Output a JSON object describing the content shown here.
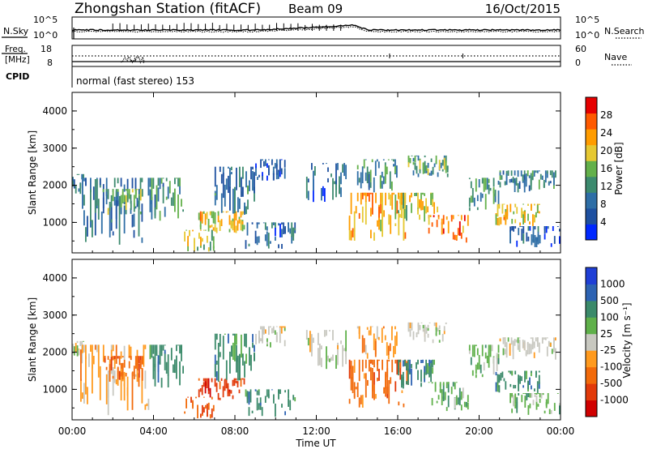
{
  "header": {
    "station": "Zhongshan Station (fitACF)",
    "beam": "Beam 09",
    "date": "16/Oct/2015"
  },
  "noise_panel": {
    "left_label": "N.Sky",
    "right_label": "N.Search",
    "left_ticks": [
      "10^5",
      "10^0"
    ],
    "right_ticks": [
      "10^5",
      "10^0"
    ]
  },
  "freq_panel": {
    "label_line1": "Freq.",
    "label_line2": "[MHz]",
    "left_ticks": [
      "18",
      "8"
    ],
    "right_ticks": [
      "60",
      "0"
    ],
    "right_label": "Nave"
  },
  "cpid_panel": {
    "label": "CPID",
    "text": "normal (fast stereo) 153"
  },
  "x_axis": {
    "label": "Time UT",
    "ticks": [
      "00:00",
      "04:00",
      "08:00",
      "12:00",
      "16:00",
      "20:00",
      "00:00"
    ]
  },
  "colors": {
    "power": [
      "#0028ff",
      "#1e50a0",
      "#2e6ea6",
      "#3c8a6e",
      "#63b04a",
      "#e6c832",
      "#ff9c00",
      "#ff5a00",
      "#e60000"
    ],
    "velocity": [
      "#1f3fd6",
      "#2d63b3",
      "#3b8a6a",
      "#5fb04a",
      "#c8c8c0",
      "#ff9a1e",
      "#f26a0a",
      "#e23a0a",
      "#d00000"
    ]
  },
  "chart_data": [
    {
      "type": "heatmap",
      "title": "",
      "ylabel": "Slant Range [km]",
      "xlabel": "",
      "x_range_hours": [
        0,
        24
      ],
      "ylim": [
        180,
        4500
      ],
      "y_ticks": [
        "4000",
        "3000",
        "2000",
        "1000"
      ],
      "colorbar": {
        "label": "Power [dB]",
        "ticks": [
          "28",
          "24",
          "20",
          "16",
          "12",
          "8",
          "4"
        ],
        "range": [
          0,
          32
        ]
      },
      "blobs": [
        {
          "t0": 0.0,
          "t1": 0.6,
          "r0": 1700,
          "r1": 2300,
          "value": 10
        },
        {
          "t0": 0.4,
          "t1": 3.8,
          "r0": 250,
          "r1": 2200,
          "value": 9
        },
        {
          "t0": 1.5,
          "t1": 3.5,
          "r0": 1200,
          "r1": 1900,
          "value": 14
        },
        {
          "t0": 3.8,
          "t1": 5.5,
          "r0": 1000,
          "r1": 2200,
          "value": 11
        },
        {
          "t0": 5.5,
          "t1": 7.0,
          "r0": 200,
          "r1": 800,
          "value": 18
        },
        {
          "t0": 6.2,
          "t1": 8.5,
          "r0": 700,
          "r1": 1300,
          "value": 20
        },
        {
          "t0": 7.0,
          "t1": 9.0,
          "r0": 1200,
          "r1": 2500,
          "value": 10
        },
        {
          "t0": 8.5,
          "t1": 11.0,
          "r0": 250,
          "r1": 1000,
          "value": 8
        },
        {
          "t0": 9.0,
          "t1": 10.5,
          "r0": 2100,
          "r1": 2700,
          "value": 6
        },
        {
          "t0": 11.5,
          "t1": 13.5,
          "r0": 1500,
          "r1": 2600,
          "value": 8
        },
        {
          "t0": 13.6,
          "t1": 16.5,
          "r0": 500,
          "r1": 1800,
          "value": 22
        },
        {
          "t0": 14.0,
          "t1": 16.0,
          "r0": 1800,
          "r1": 2700,
          "value": 12
        },
        {
          "t0": 16.0,
          "t1": 18.0,
          "r0": 1000,
          "r1": 1800,
          "value": 18
        },
        {
          "t0": 16.5,
          "t1": 18.5,
          "r0": 2200,
          "r1": 2800,
          "value": 14
        },
        {
          "t0": 17.5,
          "t1": 19.5,
          "r0": 400,
          "r1": 1200,
          "value": 26
        },
        {
          "t0": 19.5,
          "t1": 21.0,
          "r0": 1300,
          "r1": 2200,
          "value": 12
        },
        {
          "t0": 20.8,
          "t1": 23.0,
          "r0": 900,
          "r1": 1500,
          "value": 20
        },
        {
          "t0": 21.0,
          "t1": 23.8,
          "r0": 1800,
          "r1": 2400,
          "value": 10
        },
        {
          "t0": 21.5,
          "t1": 24.0,
          "r0": 300,
          "r1": 900,
          "value": 7
        }
      ]
    },
    {
      "type": "heatmap",
      "title": "",
      "ylabel": "Slant Range [km]",
      "xlabel": "Time UT",
      "x_range_hours": [
        0,
        24
      ],
      "ylim": [
        180,
        4500
      ],
      "y_ticks": [
        "4000",
        "3000",
        "2000",
        "1000"
      ],
      "colorbar": {
        "label": "Velocity [m s⁻¹]",
        "ticks": [
          "1000",
          "500",
          "100",
          "25",
          "-25",
          "-100",
          "-500",
          "-1000"
        ]
      },
      "blobs": [
        {
          "t0": 0.0,
          "t1": 0.6,
          "r0": 1700,
          "r1": 2300,
          "class": 4
        },
        {
          "t0": 0.4,
          "t1": 3.8,
          "r0": 250,
          "r1": 2200,
          "class": 5
        },
        {
          "t0": 1.5,
          "t1": 3.5,
          "r0": 1200,
          "r1": 1900,
          "class": 6
        },
        {
          "t0": 3.8,
          "t1": 5.5,
          "r0": 1000,
          "r1": 2200,
          "class": 2
        },
        {
          "t0": 5.5,
          "t1": 7.0,
          "r0": 200,
          "r1": 800,
          "class": 6
        },
        {
          "t0": 6.2,
          "t1": 8.5,
          "r0": 700,
          "r1": 1300,
          "class": 7
        },
        {
          "t0": 7.0,
          "t1": 9.0,
          "r0": 1200,
          "r1": 2500,
          "class": 2
        },
        {
          "t0": 8.5,
          "t1": 11.0,
          "r0": 250,
          "r1": 1000,
          "class": 2
        },
        {
          "t0": 9.0,
          "t1": 10.5,
          "r0": 2100,
          "r1": 2700,
          "class": 4
        },
        {
          "t0": 11.5,
          "t1": 13.5,
          "r0": 1500,
          "r1": 2600,
          "class": 4
        },
        {
          "t0": 13.6,
          "t1": 16.5,
          "r0": 500,
          "r1": 1800,
          "class": 6
        },
        {
          "t0": 14.0,
          "t1": 16.0,
          "r0": 1800,
          "r1": 2700,
          "class": 5
        },
        {
          "t0": 16.0,
          "t1": 18.0,
          "r0": 1000,
          "r1": 1800,
          "class": 2
        },
        {
          "t0": 16.5,
          "t1": 18.5,
          "r0": 2200,
          "r1": 2800,
          "class": 4
        },
        {
          "t0": 17.5,
          "t1": 19.5,
          "r0": 400,
          "r1": 1200,
          "class": 3
        },
        {
          "t0": 19.5,
          "t1": 21.0,
          "r0": 1300,
          "r1": 2200,
          "class": 3
        },
        {
          "t0": 20.8,
          "t1": 23.0,
          "r0": 900,
          "r1": 1500,
          "class": 2
        },
        {
          "t0": 21.0,
          "t1": 23.8,
          "r0": 1800,
          "r1": 2400,
          "class": 4
        },
        {
          "t0": 21.5,
          "t1": 24.0,
          "r0": 300,
          "r1": 900,
          "class": 3
        }
      ]
    }
  ]
}
